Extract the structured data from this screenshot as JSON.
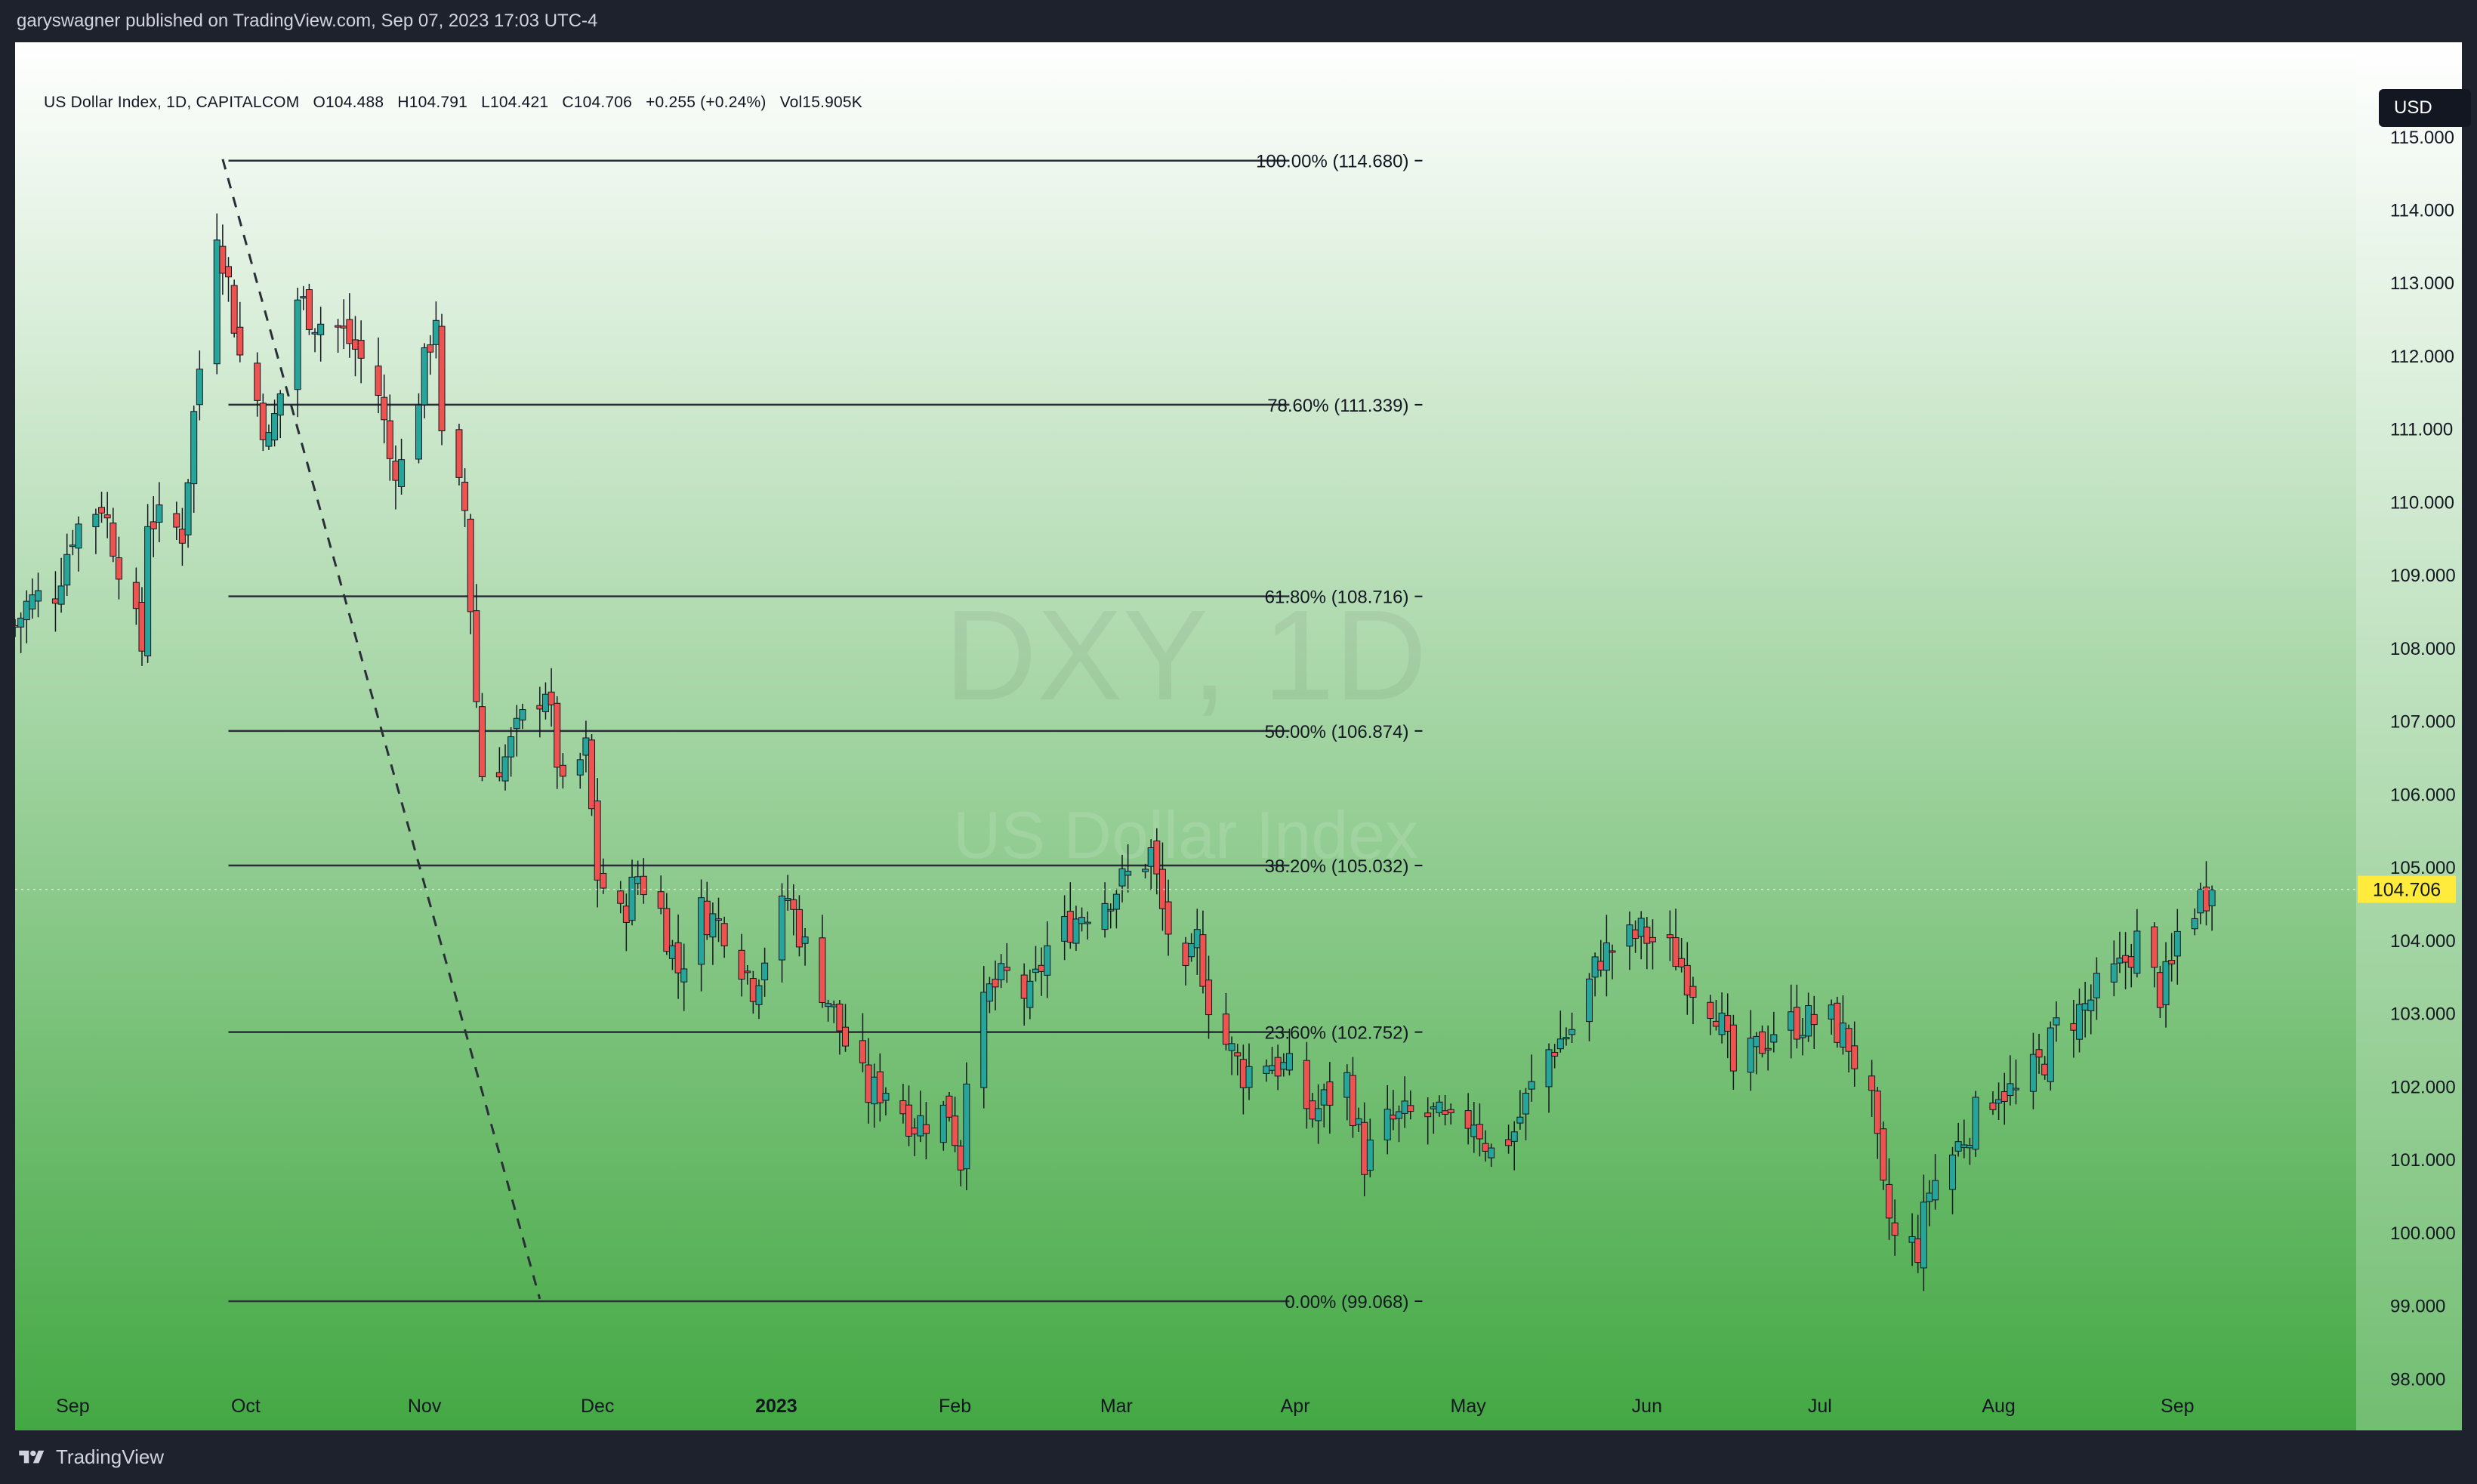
{
  "header": {
    "published_text": "garyswagner published on TradingView.com, Sep 07, 2023 17:03 UTC-4"
  },
  "legend": {
    "symbol": "US Dollar Index, 1D, CAPITALCOM",
    "open": "O104.488",
    "high": "H104.791",
    "low": "L104.421",
    "close": "C104.706",
    "change": "+0.255 (+0.24%)",
    "volume": "Vol15.905K"
  },
  "currency_button": "USD",
  "watermark": {
    "ticker": "DXY, 1D",
    "name": "US Dollar Index"
  },
  "footer": {
    "brand": "TradingView"
  },
  "colors": {
    "up": "#26a69a",
    "down": "#ef5350",
    "gradient_top": "#ffffff",
    "gradient_bottom": "#43a843",
    "price_tag": "#ffeb3b",
    "fib_line": "#2a2e39"
  },
  "chart_data": {
    "type": "candlestick",
    "symbol": "US Dollar Index",
    "interval": "1D",
    "y_axis": {
      "ticks": [
        "98.000",
        "99.000",
        "100.000",
        "101.000",
        "102.000",
        "103.000",
        "104.000",
        "105.000",
        "106.000",
        "107.000",
        "108.000",
        "109.000",
        "110.000",
        "111.000",
        "112.000",
        "113.000",
        "114.000",
        "115.000"
      ],
      "range": [
        97.9,
        116.3
      ]
    },
    "x_axis": {
      "labels": [
        "Sep",
        "Oct",
        "Nov",
        "Dec",
        "2023",
        "Feb",
        "Mar",
        "Apr",
        "May",
        "Jun",
        "Jul",
        "Aug",
        "Sep"
      ],
      "label_dates": [
        "2022-09-01",
        "2022-10-01",
        "2022-11-01",
        "2022-12-01",
        "2023-01-01",
        "2023-02-01",
        "2023-03-01",
        "2023-04-01",
        "2023-05-01",
        "2023-06-01",
        "2023-07-01",
        "2023-08-01",
        "2023-09-01"
      ],
      "range": [
        "2022-08-22",
        "2023-10-02"
      ]
    },
    "last_price": "104.706",
    "fibonacci": {
      "start_date": "2022-09-28",
      "end_date": "2023-03-31",
      "high": 114.68,
      "low": 99.068,
      "levels": [
        {
          "ratio": 1.0,
          "label": "100.00% (114.680)",
          "price": 114.68
        },
        {
          "ratio": 0.786,
          "label": "78.60% (111.339)",
          "price": 111.339
        },
        {
          "ratio": 0.618,
          "label": "61.80% (108.716)",
          "price": 108.716
        },
        {
          "ratio": 0.5,
          "label": "50.00% (106.874)",
          "price": 106.874
        },
        {
          "ratio": 0.382,
          "label": "38.20% (105.032)",
          "price": 105.032
        },
        {
          "ratio": 0.236,
          "label": "23.60% (102.752)",
          "price": 102.752
        },
        {
          "ratio": 0.0,
          "label": "0.00% (99.068)",
          "price": 99.068
        }
      ],
      "trend_line": [
        [
          "2022-09-27",
          114.7
        ],
        [
          "2022-11-21",
          99.1
        ]
      ]
    },
    "anchors": [
      [
        "2022-08-22",
        108.3
      ],
      [
        "2022-08-24",
        108.6
      ],
      [
        "2022-08-26",
        108.7
      ],
      [
        "2022-08-29",
        108.8
      ],
      [
        "2022-09-01",
        109.6
      ],
      [
        "2022-09-06",
        110.0
      ],
      [
        "2022-09-09",
        109.2
      ],
      [
        "2022-09-13",
        108.0
      ],
      [
        "2022-09-14",
        109.8
      ],
      [
        "2022-09-20",
        109.6
      ],
      [
        "2022-09-22",
        111.2
      ],
      [
        "2022-09-26",
        113.8
      ],
      [
        "2022-09-28",
        113.0
      ],
      [
        "2022-09-30",
        112.0
      ],
      [
        "2022-10-03",
        111.4
      ],
      [
        "2022-10-05",
        110.8
      ],
      [
        "2022-10-07",
        111.5
      ],
      [
        "2022-10-10",
        112.8
      ],
      [
        "2022-10-13",
        112.5
      ],
      [
        "2022-10-17",
        112.4
      ],
      [
        "2022-10-20",
        112.1
      ],
      [
        "2022-10-24",
        111.5
      ],
      [
        "2022-10-26",
        110.6
      ],
      [
        "2022-10-28",
        110.5
      ],
      [
        "2022-10-31",
        111.5
      ],
      [
        "2022-11-03",
        112.6
      ],
      [
        "2022-11-04",
        110.8
      ],
      [
        "2022-11-08",
        109.9
      ],
      [
        "2022-11-10",
        107.3
      ],
      [
        "2022-11-11",
        106.3
      ],
      [
        "2022-11-15",
        106.5
      ],
      [
        "2022-11-18",
        107.0
      ],
      [
        "2022-11-22",
        107.5
      ],
      [
        "2022-11-25",
        106.0
      ],
      [
        "2022-11-29",
        106.6
      ],
      [
        "2022-12-01",
        104.9
      ],
      [
        "2022-12-05",
        104.3
      ],
      [
        "2022-12-08",
        104.9
      ],
      [
        "2022-12-12",
        104.4
      ],
      [
        "2022-12-15",
        103.6
      ],
      [
        "2022-12-19",
        104.4
      ],
      [
        "2022-12-23",
        104.2
      ],
      [
        "2022-12-28",
        103.4
      ],
      [
        "2023-01-03",
        104.6
      ],
      [
        "2023-01-06",
        103.9
      ],
      [
        "2023-01-10",
        103.2
      ],
      [
        "2023-01-13",
        102.6
      ],
      [
        "2023-01-17",
        101.9
      ],
      [
        "2023-01-20",
        102.0
      ],
      [
        "2023-01-25",
        101.5
      ],
      [
        "2023-01-31",
        101.7
      ],
      [
        "2023-02-02",
        101.0
      ],
      [
        "2023-02-03",
        102.3
      ],
      [
        "2023-02-07",
        103.3
      ],
      [
        "2023-02-10",
        103.5
      ],
      [
        "2023-02-14",
        103.2
      ],
      [
        "2023-02-17",
        103.9
      ],
      [
        "2023-02-23",
        104.4
      ],
      [
        "2023-02-27",
        104.6
      ],
      [
        "2023-03-02",
        104.8
      ],
      [
        "2023-03-07",
        105.2
      ],
      [
        "2023-03-09",
        104.4
      ],
      [
        "2023-03-13",
        103.4
      ],
      [
        "2023-03-15",
        104.0
      ],
      [
        "2023-03-17",
        103.2
      ],
      [
        "2023-03-20",
        102.6
      ],
      [
        "2023-03-23",
        102.2
      ],
      [
        "2023-03-27",
        102.4
      ],
      [
        "2023-03-31",
        102.2
      ],
      [
        "2023-04-04",
        101.6
      ],
      [
        "2023-04-06",
        101.8
      ],
      [
        "2023-04-10",
        102.1
      ],
      [
        "2023-04-13",
        101.0
      ],
      [
        "2023-04-17",
        101.5
      ],
      [
        "2023-04-21",
        101.6
      ],
      [
        "2023-04-25",
        101.6
      ],
      [
        "2023-04-28",
        101.4
      ],
      [
        "2023-05-02",
        101.6
      ],
      [
        "2023-05-05",
        101.1
      ],
      [
        "2023-05-09",
        101.4
      ],
      [
        "2023-05-11",
        101.8
      ],
      [
        "2023-05-15",
        102.5
      ],
      [
        "2023-05-19",
        102.8
      ],
      [
        "2023-05-24",
        103.8
      ],
      [
        "2023-05-31",
        104.1
      ],
      [
        "2023-06-02",
        104.0
      ],
      [
        "2023-06-06",
        103.8
      ],
      [
        "2023-06-09",
        103.4
      ],
      [
        "2023-06-13",
        103.1
      ],
      [
        "2023-06-16",
        102.2
      ],
      [
        "2023-06-19",
        102.4
      ],
      [
        "2023-06-23",
        102.8
      ],
      [
        "2023-06-28",
        102.9
      ],
      [
        "2023-07-03",
        102.9
      ],
      [
        "2023-07-06",
        102.6
      ],
      [
        "2023-07-10",
        101.7
      ],
      [
        "2023-07-12",
        100.5
      ],
      [
        "2023-07-14",
        99.9
      ],
      [
        "2023-07-18",
        99.8
      ],
      [
        "2023-07-20",
        100.6
      ],
      [
        "2023-07-25",
        101.2
      ],
      [
        "2023-07-28",
        101.6
      ],
      [
        "2023-08-01",
        102.0
      ],
      [
        "2023-08-04",
        101.9
      ],
      [
        "2023-08-09",
        102.4
      ],
      [
        "2023-08-11",
        102.8
      ],
      [
        "2023-08-16",
        103.1
      ],
      [
        "2023-08-18",
        103.3
      ],
      [
        "2023-08-22",
        103.6
      ],
      [
        "2023-08-25",
        104.0
      ],
      [
        "2023-08-29",
        103.3
      ],
      [
        "2023-08-31",
        103.6
      ],
      [
        "2023-09-01",
        104.1
      ],
      [
        "2023-09-05",
        104.6
      ],
      [
        "2023-09-07",
        104.7
      ]
    ]
  }
}
